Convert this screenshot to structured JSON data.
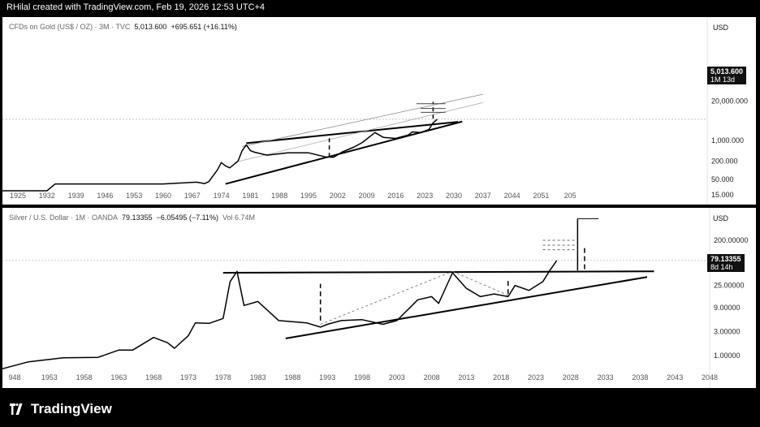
{
  "header": {
    "text": "RHilal created with TradingView.com, Feb 19, 2026 12:53 UTC+4"
  },
  "footer": {
    "brand": "TradingView"
  },
  "charts": [
    {
      "legend_name": "CFDs on Gold (US$ / OZ) · 3M · TVC",
      "legend_value": "5,013.600",
      "legend_change": "+695.651 (+16.11%)",
      "currency": "USD",
      "price_label": "5,013.600",
      "price_sub": "1M 13d"
    },
    {
      "legend_name": "Silver / U.S. Dollar · 1M · OANDA",
      "legend_value": "79.13355",
      "legend_change": "−6.05495 (−7.11%)",
      "legend_vol": "Vol 6.74M",
      "currency": "USD",
      "price_label": "79.13355",
      "price_sub": "8d 14h"
    }
  ],
  "chart_data": [
    {
      "type": "line",
      "scale": "log",
      "x_ticks": [
        "1925",
        "1932",
        "1939",
        "1946",
        "1953",
        "1960",
        "1967",
        "1974",
        "1981",
        "1988",
        "1995",
        "2002",
        "2009",
        "2016",
        "2023",
        "2030",
        "2037",
        "2044",
        "2051",
        "205"
      ],
      "y_ticks": [
        "20,000.000",
        "5,013.600",
        "1,000.000",
        "200.000",
        "50.000",
        "15.000"
      ],
      "x": [
        1920,
        1930,
        1932,
        1934,
        1940,
        1960,
        1968,
        1970,
        1971,
        1972,
        1973,
        1974,
        1975,
        1976,
        1978,
        1979,
        1980,
        1981,
        1982,
        1985,
        1990,
        1995,
        1999,
        2001,
        2003,
        2006,
        2008,
        2011,
        2013,
        2016,
        2019,
        2020,
        2022,
        2024,
        2025,
        2026
      ],
      "y": [
        20.67,
        20.67,
        20.67,
        35,
        35,
        35,
        40,
        36,
        42,
        65,
        100,
        180,
        140,
        120,
        200,
        450,
        700,
        450,
        400,
        320,
        380,
        380,
        280,
        270,
        400,
        600,
        850,
        1800,
        1250,
        1150,
        1500,
        1900,
        1800,
        2300,
        3800,
        5013
      ]
    },
    {
      "type": "line",
      "scale": "log",
      "x_ticks": [
        "948",
        "1953",
        "1958",
        "1963",
        "1968",
        "1973",
        "1978",
        "1983",
        "1988",
        "1993",
        "1998",
        "2003",
        "2008",
        "2013",
        "2018",
        "2023",
        "2028",
        "2033",
        "2038",
        "2043",
        "2048"
      ],
      "y_ticks": [
        "200.00000",
        "79.13355",
        "25.00000",
        "9.00000",
        "3.00000",
        "1.00000"
      ],
      "x": [
        1944,
        1950,
        1955,
        1960,
        1963,
        1965,
        1968,
        1970,
        1971,
        1973,
        1974,
        1976,
        1978,
        1979,
        1980,
        1981,
        1983,
        1986,
        1990,
        1992,
        1993,
        1995,
        1998,
        2001,
        2003,
        2006,
        2008,
        2009,
        2011,
        2013,
        2015,
        2017,
        2019,
        2020,
        2022,
        2024,
        2025,
        2026
      ],
      "y": [
        0.45,
        0.75,
        0.9,
        0.92,
        1.29,
        1.29,
        2.3,
        1.8,
        1.4,
        2.5,
        4.5,
        4.4,
        5.5,
        30,
        48,
        10,
        12,
        5,
        4.5,
        3.7,
        4.2,
        5,
        5.2,
        4.2,
        5,
        13,
        15,
        11,
        45,
        22,
        15,
        17,
        15,
        25,
        20,
        30,
        50,
        79.13
      ]
    }
  ]
}
